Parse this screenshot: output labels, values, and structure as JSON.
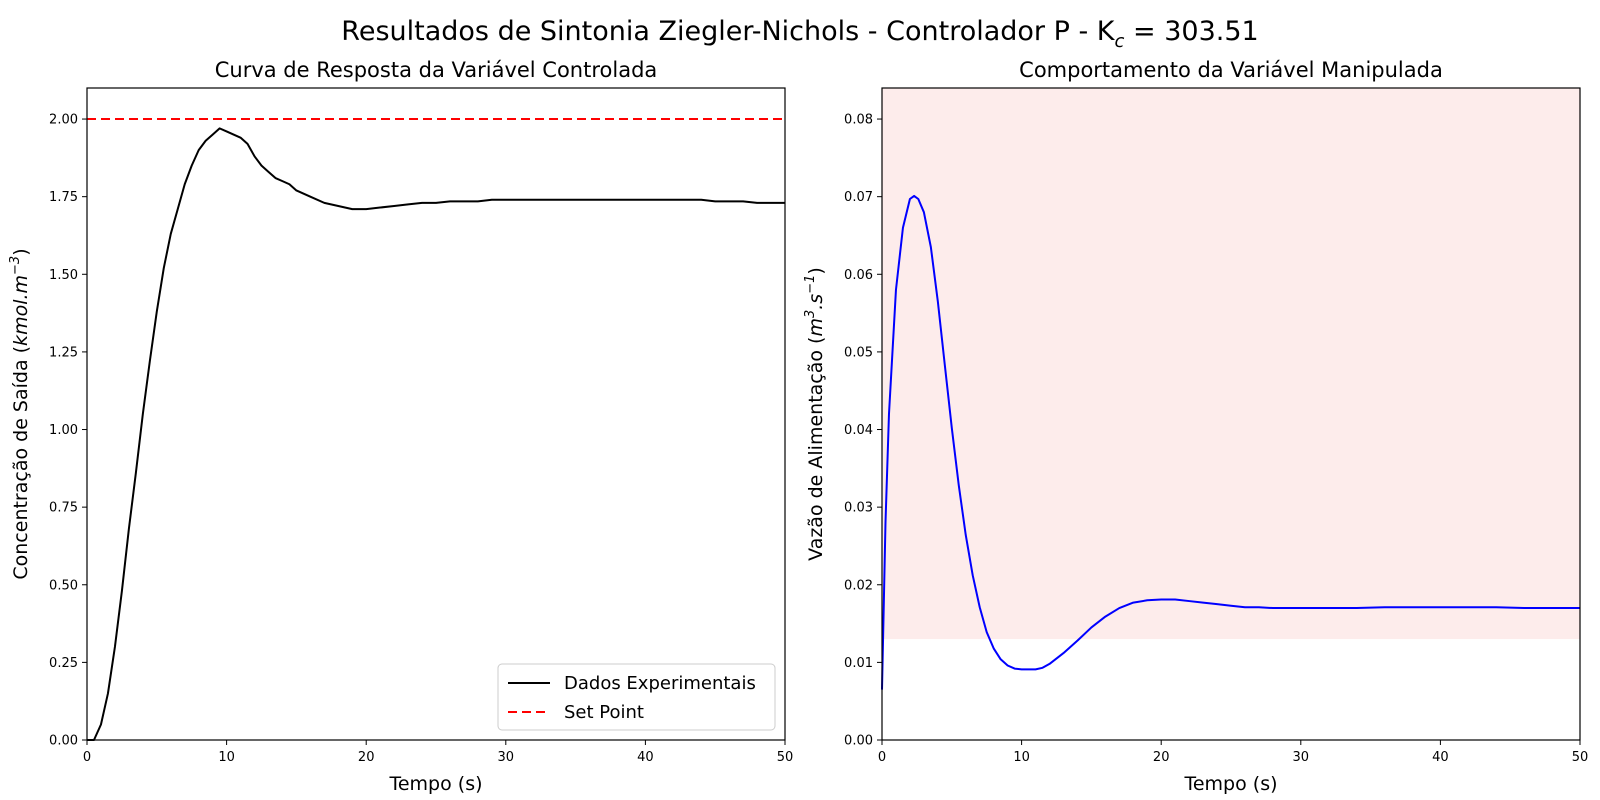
{
  "figure": {
    "suptitle": "Resultados de Sintonia Ziegler-Nichols - Controlador P - K",
    "suptitle_sub": "c",
    "suptitle_value": " = 303.51"
  },
  "chart_data": [
    {
      "type": "line",
      "title": "Curva de Resposta da Variável Controlada",
      "xlabel": "Tempo (s)",
      "ylabel": "Concentração de Saída (",
      "ylabel_units": "kmol.m",
      "ylabel_exp": "−3",
      "ylabel_close": ")",
      "xlim": [
        0,
        50
      ],
      "ylim": [
        0,
        2.1
      ],
      "xticks": [
        "0",
        "10",
        "20",
        "30",
        "40",
        "50"
      ],
      "xtick_values": [
        0,
        10,
        20,
        30,
        40,
        50
      ],
      "yticks": [
        "0.00",
        "0.25",
        "0.50",
        "0.75",
        "1.00",
        "1.25",
        "1.50",
        "1.75",
        "2.00"
      ],
      "ytick_values": [
        0,
        0.25,
        0.5,
        0.75,
        1.0,
        1.25,
        1.5,
        1.75,
        2.0
      ],
      "grid": false,
      "legend_position": "lower-right",
      "series": [
        {
          "name": "Dados Experimentais",
          "color": "#000000",
          "style": "solid",
          "x": [
            0,
            0.5,
            1,
            1.5,
            2,
            2.5,
            3,
            3.5,
            4,
            4.5,
            5,
            5.5,
            6,
            6.5,
            7,
            7.5,
            8,
            8.5,
            9,
            9.5,
            10,
            10.5,
            11,
            11.5,
            12,
            12.5,
            13,
            13.5,
            14,
            14.5,
            15,
            16,
            17,
            18,
            19,
            20,
            21,
            22,
            23,
            24,
            25,
            26,
            27,
            28,
            29,
            30,
            31,
            32,
            33,
            34,
            35,
            36,
            37,
            38,
            39,
            40,
            41,
            42,
            43,
            44,
            45,
            46,
            47,
            48,
            49,
            50
          ],
          "y": [
            0,
            0.0,
            0.05,
            0.15,
            0.3,
            0.48,
            0.68,
            0.86,
            1.05,
            1.22,
            1.38,
            1.52,
            1.63,
            1.71,
            1.79,
            1.85,
            1.9,
            1.93,
            1.95,
            1.97,
            1.96,
            1.95,
            1.94,
            1.92,
            1.88,
            1.85,
            1.83,
            1.81,
            1.8,
            1.79,
            1.77,
            1.75,
            1.73,
            1.72,
            1.71,
            1.71,
            1.715,
            1.72,
            1.725,
            1.73,
            1.73,
            1.735,
            1.735,
            1.735,
            1.74,
            1.74,
            1.74,
            1.74,
            1.74,
            1.74,
            1.74,
            1.74,
            1.74,
            1.74,
            1.74,
            1.74,
            1.74,
            1.74,
            1.74,
            1.74,
            1.735,
            1.735,
            1.735,
            1.73,
            1.73,
            1.73
          ]
        },
        {
          "name": "Set Point",
          "color": "#ff0000",
          "style": "dashed",
          "x": [
            0,
            50
          ],
          "y": [
            2.0,
            2.0
          ]
        }
      ]
    },
    {
      "type": "line",
      "title": "Comportamento da Variável Manipulada",
      "xlabel": "Tempo (s)",
      "ylabel": "Vazão de Alimentação (",
      "ylabel_units": "m",
      "ylabel_exp": "3",
      "ylabel_units2": ".s",
      "ylabel_exp2": "−1",
      "ylabel_close": ")",
      "xlim": [
        0,
        50
      ],
      "ylim": [
        0,
        0.084
      ],
      "xticks": [
        "0",
        "10",
        "20",
        "30",
        "40",
        "50"
      ],
      "xtick_values": [
        0,
        10,
        20,
        30,
        40,
        50
      ],
      "yticks": [
        "0.00",
        "0.01",
        "0.02",
        "0.03",
        "0.04",
        "0.05",
        "0.06",
        "0.07",
        "0.08"
      ],
      "ytick_values": [
        0,
        0.01,
        0.02,
        0.03,
        0.04,
        0.05,
        0.06,
        0.07,
        0.08
      ],
      "grid": false,
      "shaded_band": {
        "y_from": 0.013,
        "y_to": 0.084,
        "color": "#fdeceb"
      },
      "series": [
        {
          "color": "#0000ff",
          "style": "solid",
          "x": [
            0,
            0.25,
            0.5,
            1,
            1.5,
            2,
            2.3,
            2.6,
            3,
            3.5,
            4,
            4.5,
            5,
            5.5,
            6,
            6.5,
            7,
            7.5,
            8,
            8.5,
            9,
            9.5,
            10,
            10.5,
            11,
            11.5,
            12,
            13,
            14,
            15,
            16,
            17,
            18,
            19,
            20,
            21,
            22,
            23,
            24,
            25,
            26,
            27,
            28,
            29,
            30,
            32,
            34,
            36,
            38,
            40,
            42,
            44,
            46,
            48,
            50
          ],
          "y": [
            0.0065,
            0.028,
            0.042,
            0.058,
            0.066,
            0.0697,
            0.0701,
            0.0697,
            0.068,
            0.0635,
            0.0565,
            0.0483,
            0.0402,
            0.0328,
            0.0264,
            0.0212,
            0.0171,
            0.0139,
            0.0118,
            0.0104,
            0.0096,
            0.0092,
            0.0091,
            0.0091,
            0.0091,
            0.0093,
            0.0098,
            0.0112,
            0.0128,
            0.0145,
            0.0159,
            0.017,
            0.0177,
            0.018,
            0.0181,
            0.0181,
            0.0179,
            0.0177,
            0.0175,
            0.0173,
            0.0171,
            0.0171,
            0.017,
            0.017,
            0.017,
            0.017,
            0.017,
            0.0171,
            0.0171,
            0.0171,
            0.0171,
            0.0171,
            0.017,
            0.017,
            0.017
          ]
        }
      ]
    }
  ]
}
